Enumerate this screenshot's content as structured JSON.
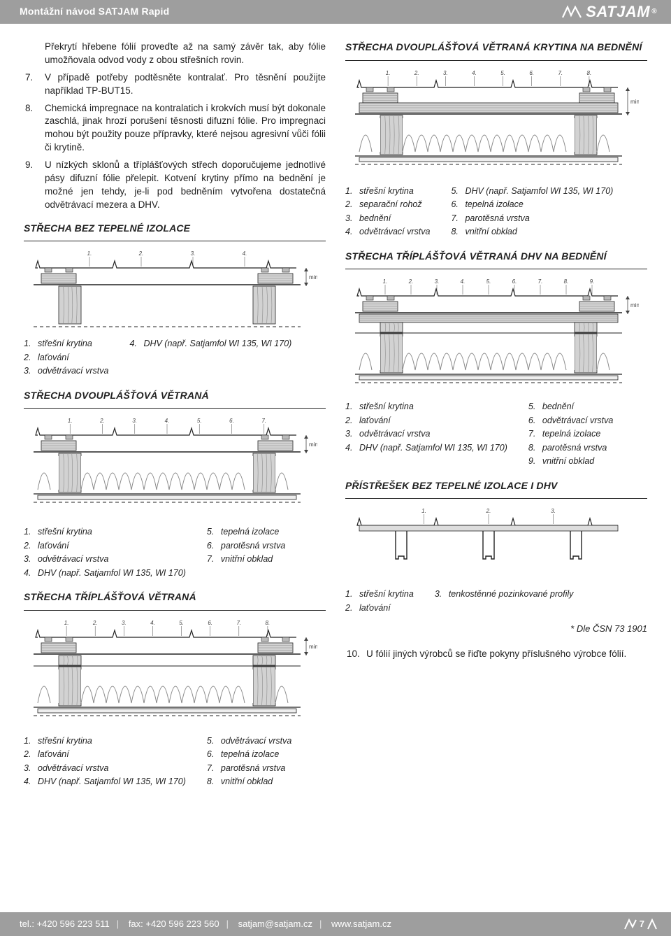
{
  "header": {
    "title": "Montážní návod SATJAM Rapid",
    "brand": "SATJAM",
    "brand_reg": "®"
  },
  "colors": {
    "header_bg": "#9e9e9e",
    "header_fg": "#ffffff",
    "text": "#222222",
    "wood_light": "#d2d2d2",
    "wood_dark": "#8c8c8c",
    "outline": "#222222",
    "foam": "#f0f0f0",
    "rule": "#222222"
  },
  "steps": [
    {
      "num": "",
      "text": "Překrytí hřebene fólií proveďte až na samý závěr tak, aby fólie umožňovala odvod vody z obou střešních rovin."
    },
    {
      "num": "7.",
      "text": "V případě potřeby podtěsněte kontralať. Pro těsnění použijte například TP-BUT15."
    },
    {
      "num": "8.",
      "text": "Chemická impregnace na kontralatich i krokvích musí být dokonale zaschlá, jinak hrozí porušení těsnosti difuzní fólie. Pro impregnaci mohou být použity pouze přípravky, které nejsou agresivní vůči fólii či krytině."
    },
    {
      "num": "9.",
      "text": "U nízkých sklonů a tříplášťových střech doporučujeme jednotlivé pásy difuzní fólie přelepit. Kotvení krytiny přímo na bednění je možné jen tehdy, je-li pod bedněním vytvořena dostatečná odvětrávací mezera a DHV."
    }
  ],
  "diagrams": {
    "A": {
      "title": "STŘECHA BEZ TEPELNÉ IZOLACE",
      "ticks": [
        "1.",
        "2.",
        "3.",
        "4."
      ],
      "min_label": "min. 40*",
      "legend_left": [
        {
          "n": "1.",
          "t": "střešní krytina"
        },
        {
          "n": "2.",
          "t": "laťování"
        },
        {
          "n": "3.",
          "t": "odvětrávací vrstva"
        }
      ],
      "legend_right": [
        {
          "n": "4.",
          "t": "DHV (např. Satjamfol WI 135, WI 170)"
        }
      ]
    },
    "B": {
      "title": "STŘECHA DVOUPLÁŠŤOVÁ VĚTRANÁ",
      "ticks": [
        "1.",
        "2.",
        "3.",
        "4.",
        "5.",
        "6.",
        "7."
      ],
      "min_label": "min. 40*",
      "legend_left": [
        {
          "n": "1.",
          "t": "střešní krytina"
        },
        {
          "n": "2.",
          "t": "laťování"
        },
        {
          "n": "3.",
          "t": "odvětrávací vrstva"
        },
        {
          "n": "4.",
          "t": "DHV (např. Satjamfol WI 135, WI 170)"
        }
      ],
      "legend_right": [
        {
          "n": "5.",
          "t": "tepelná izolace"
        },
        {
          "n": "6.",
          "t": "parotěsná vrstva"
        },
        {
          "n": "7.",
          "t": "vnitřní obklad"
        }
      ]
    },
    "C": {
      "title": "STŘECHA TŘÍPLÁŠŤOVÁ VĚTRANÁ",
      "ticks": [
        "1.",
        "2.",
        "3.",
        "4.",
        "5.",
        "6.",
        "7.",
        "8."
      ],
      "min_label": "min. 40*",
      "legend_left": [
        {
          "n": "1.",
          "t": "střešní krytina"
        },
        {
          "n": "2.",
          "t": "laťování"
        },
        {
          "n": "3.",
          "t": "odvětrávací vrstva"
        },
        {
          "n": "4.",
          "t": "DHV (např. Satjamfol WI 135, WI 170)"
        }
      ],
      "legend_right": [
        {
          "n": "5.",
          "t": "odvětrávací vrstva"
        },
        {
          "n": "6.",
          "t": "tepelná izolace"
        },
        {
          "n": "7.",
          "t": "parotěsná vrstva"
        },
        {
          "n": "8.",
          "t": "vnitřní obklad"
        }
      ]
    },
    "D": {
      "title": "STŘECHA DVOUPLÁŠŤOVÁ VĚTRANÁ KRYTINA NA BEDNĚNÍ",
      "ticks": [
        "1.",
        "2.",
        "3.",
        "4.",
        "5.",
        "6.",
        "7.",
        "8."
      ],
      "min_label": "min. 40*",
      "legend_left": [
        {
          "n": "1.",
          "t": "střešní krytina"
        },
        {
          "n": "2.",
          "t": "separační rohož"
        },
        {
          "n": "3.",
          "t": "bednění"
        },
        {
          "n": "4.",
          "t": "odvětrávací vrstva"
        }
      ],
      "legend_right": [
        {
          "n": "5.",
          "t": "DHV (např. Satjamfol WI 135, WI 170)"
        },
        {
          "n": "6.",
          "t": "tepelná izolace"
        },
        {
          "n": "7.",
          "t": "parotěsná vrstva"
        },
        {
          "n": "8.",
          "t": "vnitřní obklad"
        }
      ]
    },
    "E": {
      "title": "STŘECHA TŘÍPLÁŠŤOVÁ VĚTRANÁ DHV NA BEDNĚNÍ",
      "ticks": [
        "1.",
        "2.",
        "3.",
        "4.",
        "5.",
        "6.",
        "7.",
        "8.",
        "9."
      ],
      "min_label": "min. 40*",
      "legend_left": [
        {
          "n": "1.",
          "t": "střešní krytina"
        },
        {
          "n": "2.",
          "t": "laťování"
        },
        {
          "n": "3.",
          "t": "odvětrávací vrstva"
        },
        {
          "n": "4.",
          "t": "DHV (např. Satjamfol WI 135, WI 170)"
        }
      ],
      "legend_right": [
        {
          "n": "5.",
          "t": "bednění"
        },
        {
          "n": "6.",
          "t": "odvětrávací vrstva"
        },
        {
          "n": "7.",
          "t": "tepelná izolace"
        },
        {
          "n": "8.",
          "t": "parotěsná vrstva"
        },
        {
          "n": "9.",
          "t": "vnitřní obklad"
        }
      ]
    },
    "F": {
      "title": "PŘÍSTŘEŠEK BEZ TEPELNÉ IZOLACE I DHV",
      "ticks": [
        "1.",
        "2.",
        "3."
      ],
      "legend_left": [
        {
          "n": "1.",
          "t": "střešní krytina"
        },
        {
          "n": "2.",
          "t": "laťování"
        }
      ],
      "legend_right": [
        {
          "n": "3.",
          "t": "tenkostěnné pozinkované profily"
        }
      ]
    }
  },
  "note_csn": "* Dle ČSN 73 1901",
  "step10": {
    "num": "10.",
    "text": "U fólií jiných výrobců se řiďte pokyny příslušného výrobce fólií."
  },
  "footer": {
    "tel": "tel.: +420 596 223 511",
    "fax": "fax: +420 596 223 560",
    "email": "satjam@satjam.cz",
    "web": "www.satjam.cz",
    "page": "7"
  }
}
